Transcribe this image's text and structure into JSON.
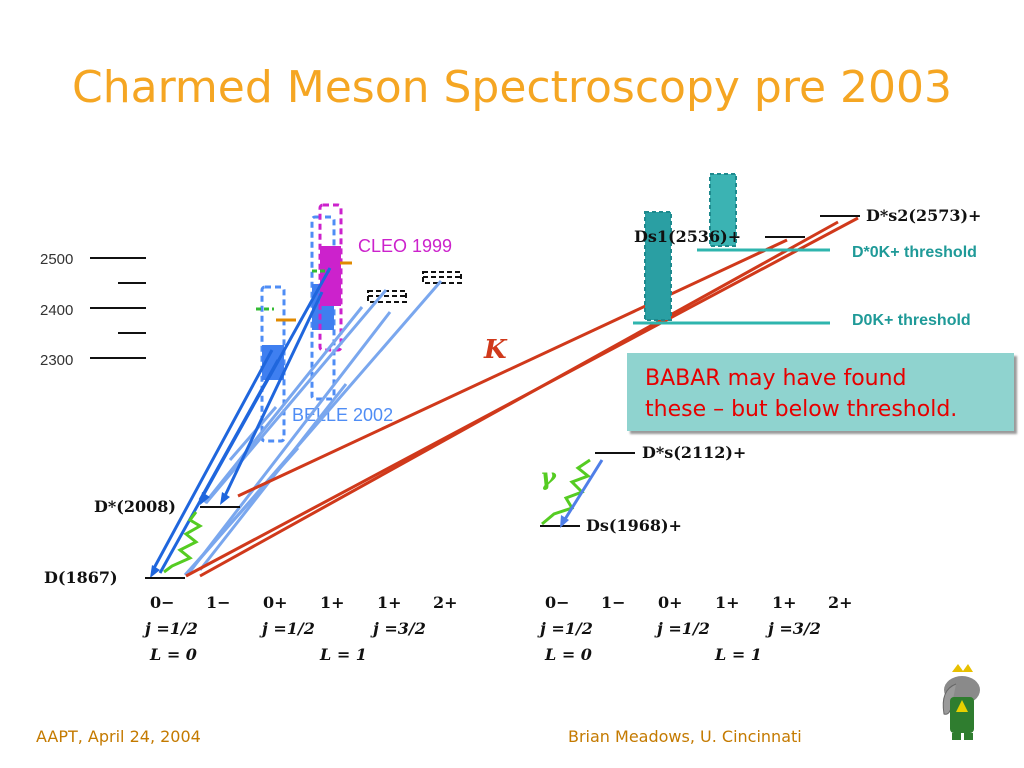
{
  "title": "Charmed Meson Spectroscopy pre 2003",
  "footer": {
    "left": "AAPT, April 24, 2004",
    "right": "Brian Meadows, U. Cincinnati"
  },
  "callout": {
    "line1": "BABAR may have found",
    "line2": "these – but below threshold."
  },
  "diagram": {
    "mass_scale": [
      "2500",
      "2400",
      "2300"
    ],
    "experiment_labels": {
      "cleo": "CLEO 1999",
      "belle": "BELLE 2002"
    },
    "particle_labels": {
      "d_star": "D*(2008)",
      "d": "D(1867)",
      "ds_star": "D*s(2112)+",
      "ds": "Ds(1968)+",
      "ds1": "Ds1(2536)+",
      "ds2": "D*s2(2573)+"
    },
    "thresholds": {
      "d0star_k": "D*0K+ threshold",
      "d0_k": "D0K+ threshold"
    },
    "emission_labels": {
      "kaon": "K",
      "photon": "γ"
    },
    "quantum_numbers": {
      "jp": [
        "0−",
        "1−",
        "0+",
        "1+",
        "1+",
        "2+"
      ],
      "j_groups": [
        "j =1/2",
        "j =1/2",
        "j =3/2"
      ],
      "l_groups": [
        "L = 0",
        "L = 1"
      ]
    }
  },
  "colors": {
    "title": "#f5a623",
    "kaon_lines": "#d0391b",
    "light_transitions": "#7aa7ee",
    "dark_transitions": "#1f66dd",
    "threshold": "#2fb5ae",
    "callout_bg": "#8fd3cf",
    "callout_text": "#e60000",
    "cleo": "#cc22cc",
    "belle": "#4f8df5",
    "photon": "#55cc22"
  },
  "logo": {
    "name": "elephant-mascot"
  }
}
